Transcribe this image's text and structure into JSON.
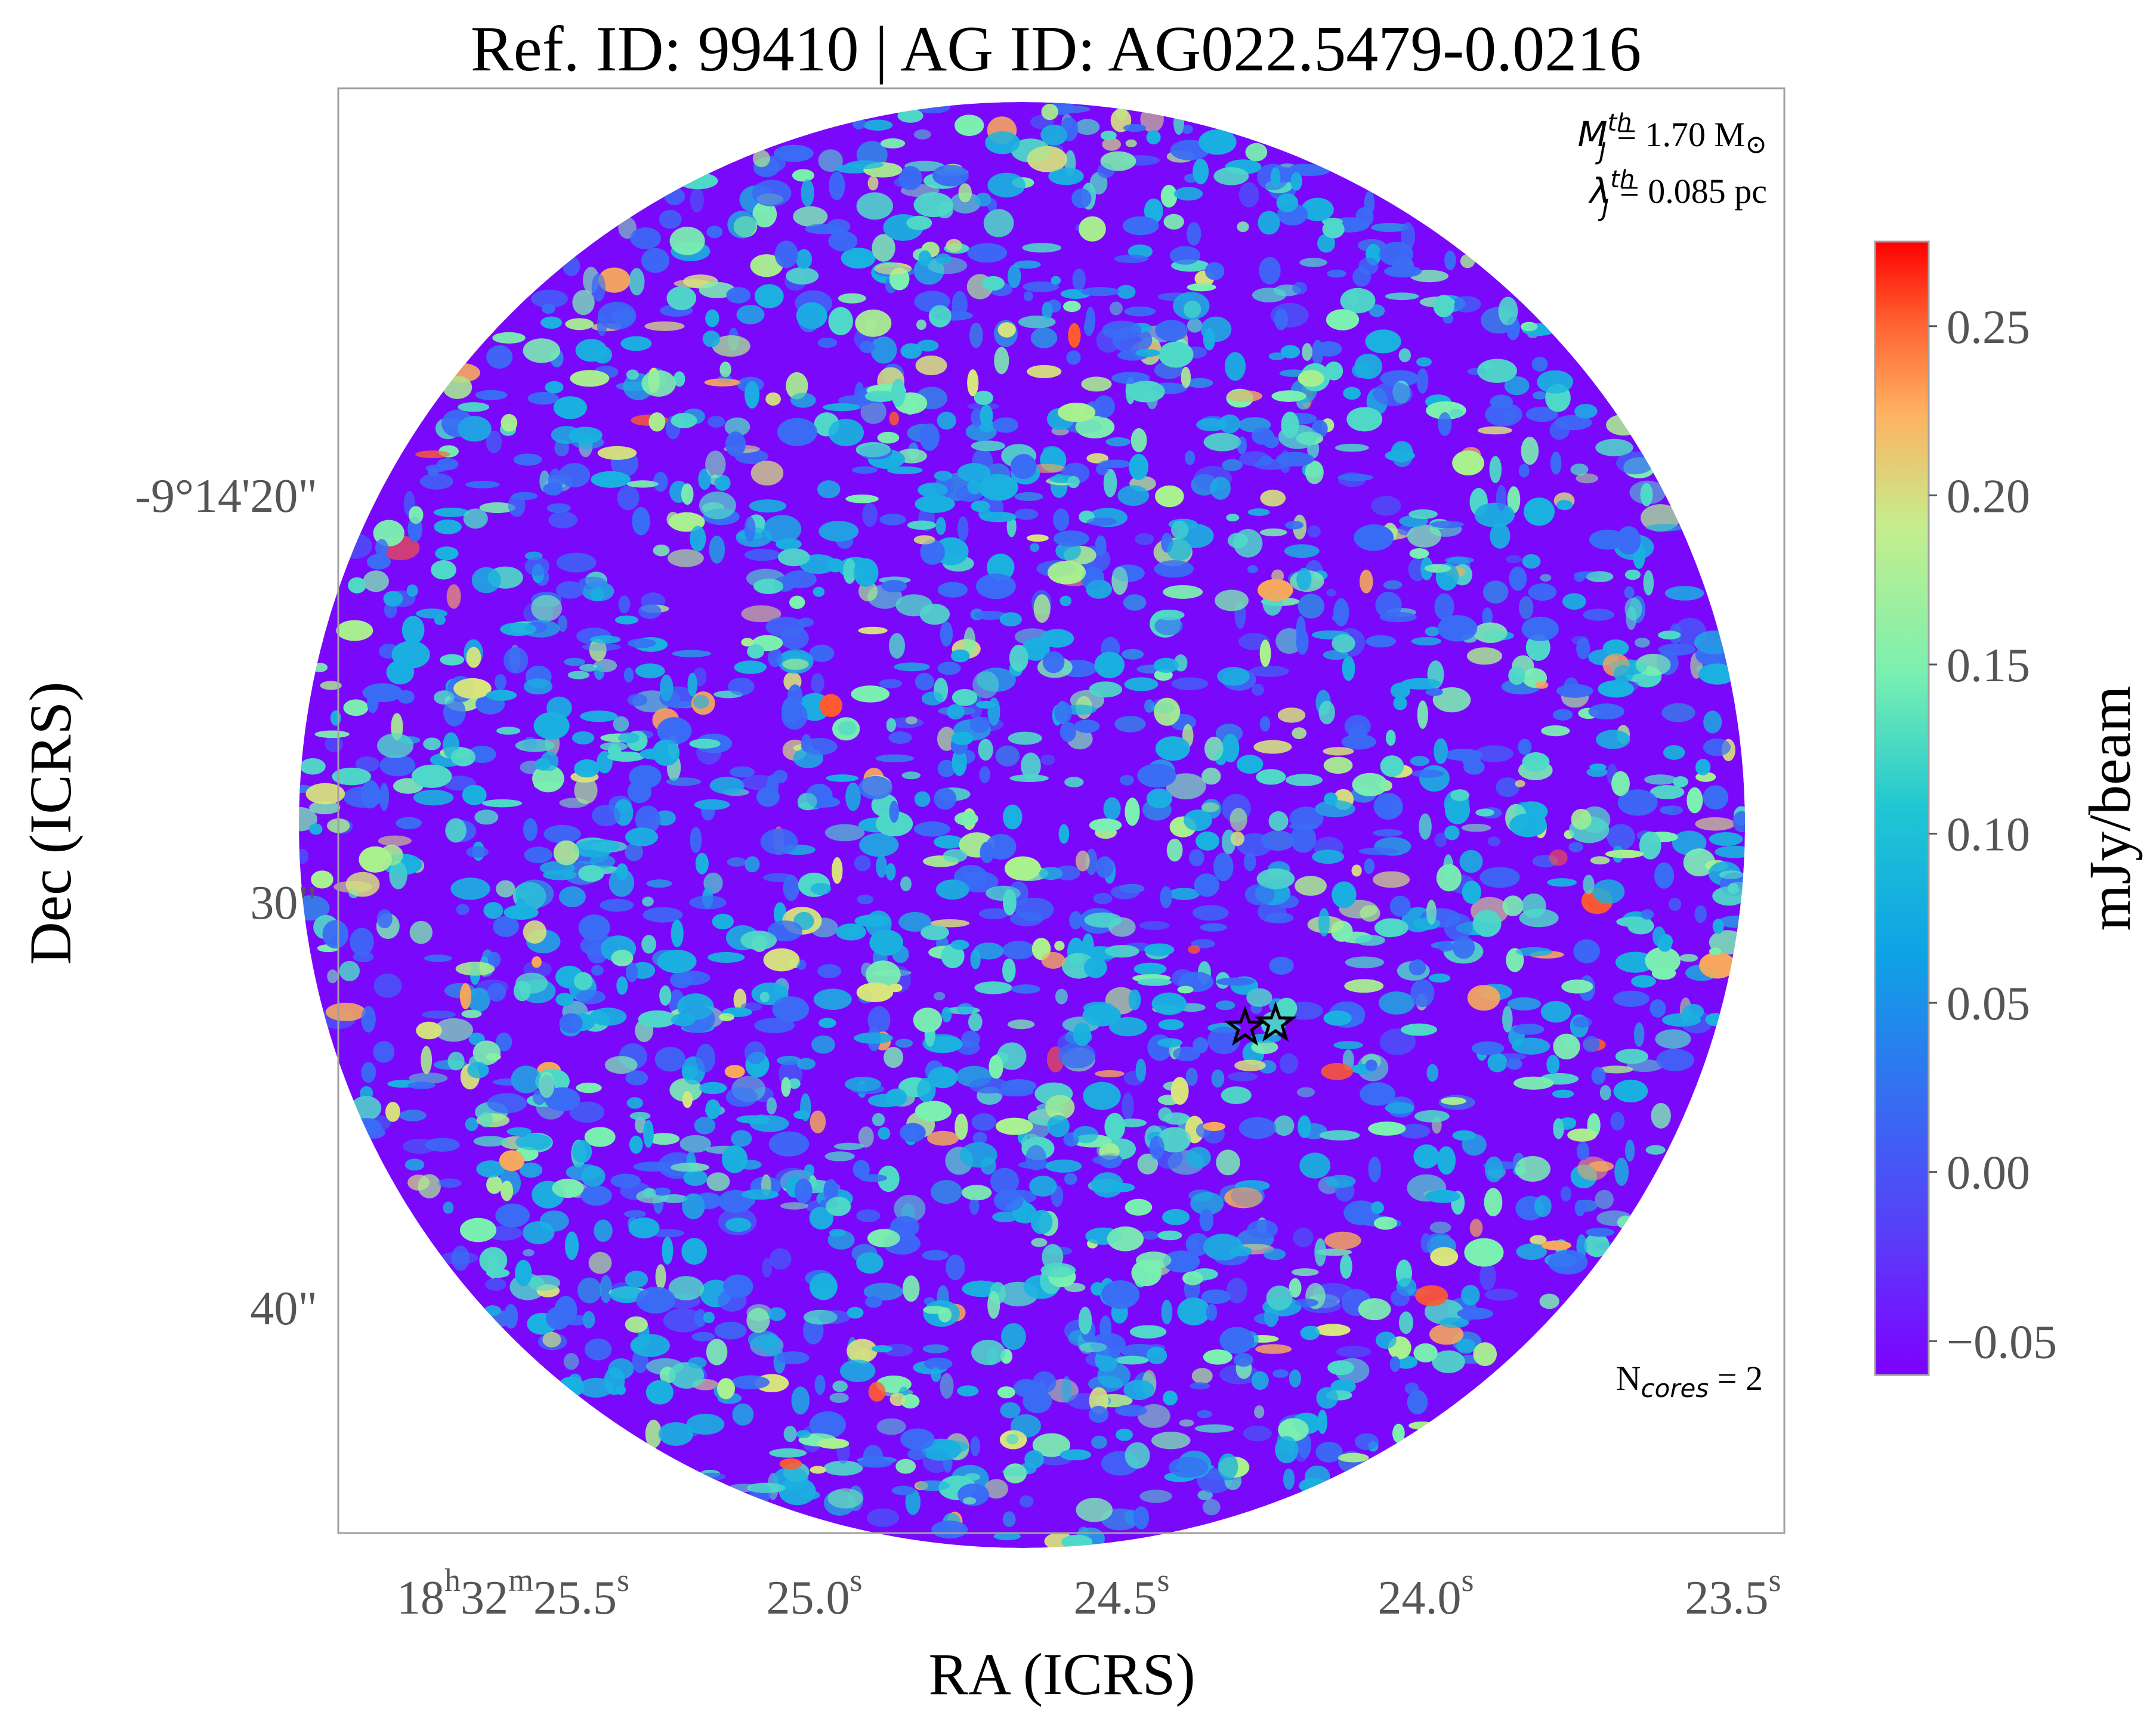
{
  "chart_data": {
    "type": "heatmap",
    "title": "Ref. ID: 99410 | AG ID: AG022.5479-0.0216",
    "xlabel": "RA (ICRS)",
    "ylabel": "Dec (ICRS)",
    "x_ticks": [
      {
        "h": "18",
        "hs": "h",
        "m": "32",
        "ms": "m",
        "s": "25.5",
        "ss": "s"
      },
      {
        "s": "25.0",
        "ss": "s"
      },
      {
        "s": "24.5",
        "ss": "s"
      },
      {
        "s": "24.0",
        "ss": "s"
      },
      {
        "s": "23.5",
        "ss": "s"
      }
    ],
    "y_ticks": [
      "-9°14'20\"",
      "30\"",
      "40\""
    ],
    "colorbar": {
      "label": "mJy/beam",
      "range": [
        -0.06,
        0.275
      ],
      "ticks": [
        "0.25",
        "0.20",
        "0.15",
        "0.10",
        "0.05",
        "0.00",
        "−0.05"
      ],
      "tick_values": [
        0.25,
        0.2,
        0.15,
        0.1,
        0.05,
        0.0,
        -0.05
      ],
      "colormap": "rainbow"
    },
    "annotations": {
      "mass_symbol": "M",
      "mass_sub": "J",
      "mass_sup": "th",
      "mass_value": "= 1.70 M",
      "mass_unit_symbol": "⊙",
      "lambda_symbol": "λ",
      "lambda_sub": "J",
      "lambda_sup": "th",
      "lambda_value": "= 0.085 pc",
      "ncores_main": "N",
      "ncores_sub": "cores",
      "ncores_value": " = 2"
    },
    "cores": [
      {
        "ra_s": 24.3,
        "dec_offset_arcsec": 32.7
      },
      {
        "ra_s": 24.25,
        "dec_offset_arcsec": 32.6
      }
    ]
  }
}
